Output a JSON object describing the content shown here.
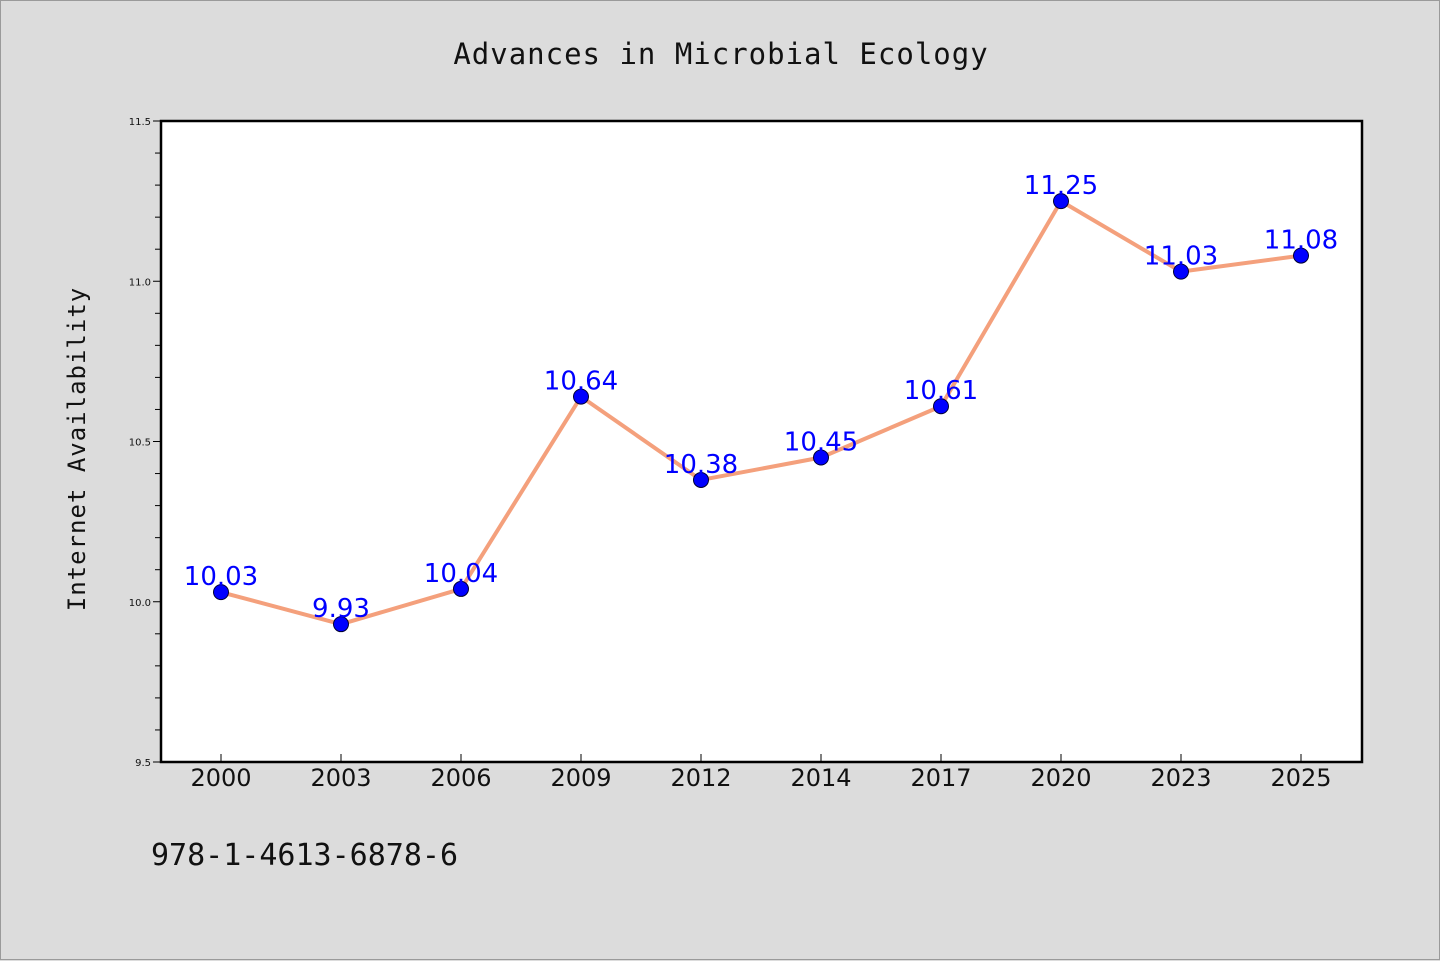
{
  "chart_data": {
    "type": "line",
    "title": "Advances in Microbial Ecology",
    "ylabel": "Internet Availability",
    "xlabel": "",
    "ylim": [
      9.5,
      11.5
    ],
    "y_ticks": [
      "9.5",
      "10.0",
      "10.5",
      "11.0",
      "11.5"
    ],
    "categories": [
      "2000",
      "2003",
      "2006",
      "2009",
      "2012",
      "2014",
      "2017",
      "2020",
      "2023",
      "2025"
    ],
    "values": [
      10.03,
      9.93,
      10.04,
      10.64,
      10.38,
      10.45,
      10.61,
      11.25,
      11.03,
      11.08
    ],
    "data_labels": [
      "10.03",
      "9.93",
      "10.04",
      "10.64",
      "10.38",
      "10.45",
      "10.61",
      "11.25",
      "11.03",
      "11.08"
    ],
    "grid": false,
    "legend": "none",
    "colors": {
      "line": "#f4a07c",
      "marker": "#0000ff",
      "data_label": "#0000ff",
      "background": "#dcdcdc",
      "plot_area": "#ffffff"
    }
  },
  "footer": {
    "isbn": "978-1-4613-6878-6"
  }
}
